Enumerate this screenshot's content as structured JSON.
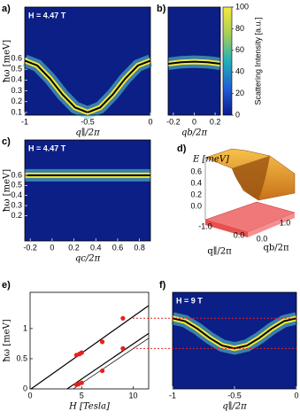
{
  "chart_data": [
    {
      "panel": "a)",
      "type": "line",
      "annotation": "H = 4.47 T",
      "xlabel": "q∥/2π",
      "ylabel": "ħω [meV]",
      "xlim": [
        -1,
        0
      ],
      "xticks": [
        -1,
        -0.5,
        0
      ],
      "ylim": [
        0.075,
        1.075
      ],
      "yticks": [
        0.1,
        0.2,
        0.3,
        0.4,
        0.5,
        0.6
      ],
      "series": [
        {
          "color": "#000000",
          "x": [
            -1,
            -0.9,
            -0.8,
            -0.7,
            -0.6,
            -0.5,
            -0.4,
            -0.3,
            -0.2,
            -0.1,
            0
          ],
          "values": [
            0.58,
            0.534,
            0.414,
            0.266,
            0.146,
            0.1,
            0.146,
            0.266,
            0.414,
            0.534,
            0.58
          ]
        }
      ]
    },
    {
      "panel": "b)",
      "type": "line",
      "xlabel": "qb/2π",
      "xlim": [
        -0.25,
        0.25
      ],
      "xticks": [
        -0.2,
        0,
        0.2
      ],
      "ylim": [
        0.075,
        1.075
      ],
      "series": [
        {
          "color": "#000000",
          "x": [
            -0.25,
            -0.125,
            0,
            0.125,
            0.25
          ],
          "values": [
            0.55,
            0.565,
            0.57,
            0.565,
            0.55
          ]
        }
      ],
      "colorbar": {
        "label": "Scattering Intensity [a.u.]",
        "lim": [
          0,
          100
        ],
        "ticks": [
          0,
          20,
          40,
          60,
          80,
          100
        ]
      }
    },
    {
      "panel": "c)",
      "type": "line",
      "annotation": "H = 4.47 T",
      "xlabel": "qc/2π",
      "ylabel": "ħω [meV]",
      "xlim": [
        -0.25,
        0.9
      ],
      "xticks": [
        -0.2,
        0,
        0.2,
        0.4,
        0.6,
        0.8
      ],
      "ylim": [
        -0.05,
        0.95
      ],
      "yticks": [
        0.2,
        0.3,
        0.4,
        0.5,
        0.6
      ],
      "series": [
        {
          "color": "#000000",
          "x": [
            -0.25,
            0.9
          ],
          "values": [
            0.6,
            0.6
          ]
        }
      ]
    },
    {
      "panel": "d)",
      "type": "surface",
      "zlabel": "E [meV]",
      "xlabel": "q∥/2π",
      "ylabel": "qb/2π",
      "zticks": [
        0.6,
        0.4,
        0.2,
        {
          "value": 0,
          "label": "0.0"
        }
      ],
      "xticks": [
        {
          "value": -1,
          "label": "-1.0"
        },
        {
          "value": 0,
          "label": "0.0"
        }
      ],
      "yticks": [
        {
          "value": 0,
          "label": "0.0"
        },
        {
          "value": 1,
          "label": "1.0"
        }
      ]
    },
    {
      "panel": "e)",
      "type": "scatter",
      "xlabel": "H [Tesla]",
      "ylabel": "ħω [meV]",
      "xlim": [
        0,
        11.5
      ],
      "xticks": [
        0,
        5,
        10
      ],
      "ylim": [
        0,
        1.6
      ],
      "yticks": [
        0,
        0.5,
        1
      ],
      "series": [
        {
          "mode": "line",
          "color": "#000000",
          "x": [
            0.1,
            11.5
          ],
          "values": [
            0,
            1.38
          ]
        },
        {
          "mode": "line",
          "color": "#000000",
          "x": [
            3.6,
            11.5
          ],
          "values": [
            0,
            0.92
          ]
        },
        {
          "mode": "line",
          "color": "#000000",
          "x": [
            4.2,
            11.5
          ],
          "values": [
            0,
            0.84
          ]
        },
        {
          "mode": "points",
          "color": "#e8201c",
          "x": [
            4.5,
            4.8,
            5,
            7,
            9
          ],
          "values": [
            0.56,
            0.58,
            0.6,
            0.78,
            1.17
          ]
        },
        {
          "mode": "points",
          "color": "#e8201c",
          "x": [
            4.5,
            4.7,
            5,
            7,
            9
          ],
          "values": [
            0.07,
            0.08,
            0.1,
            0.3,
            0.67
          ]
        }
      ]
    },
    {
      "panel": "f)",
      "type": "line",
      "annotation": "H = 9 T",
      "xlabel": "q∥/2π",
      "xlim": [
        -1,
        0
      ],
      "xticks": [
        -1,
        -0.5,
        0
      ],
      "ylim": [
        0,
        1.6
      ],
      "ref_lines": [
        1.17,
        0.67
      ],
      "series": [
        {
          "color": "#000000",
          "x": [
            -1,
            -0.9,
            -0.8,
            -0.7,
            -0.6,
            -0.5,
            -0.4,
            -0.3,
            -0.2,
            -0.1,
            0
          ],
          "values": [
            1.17,
            1.122,
            0.997,
            0.843,
            0.718,
            0.67,
            0.718,
            0.843,
            0.997,
            1.122,
            1.17
          ]
        }
      ]
    }
  ]
}
